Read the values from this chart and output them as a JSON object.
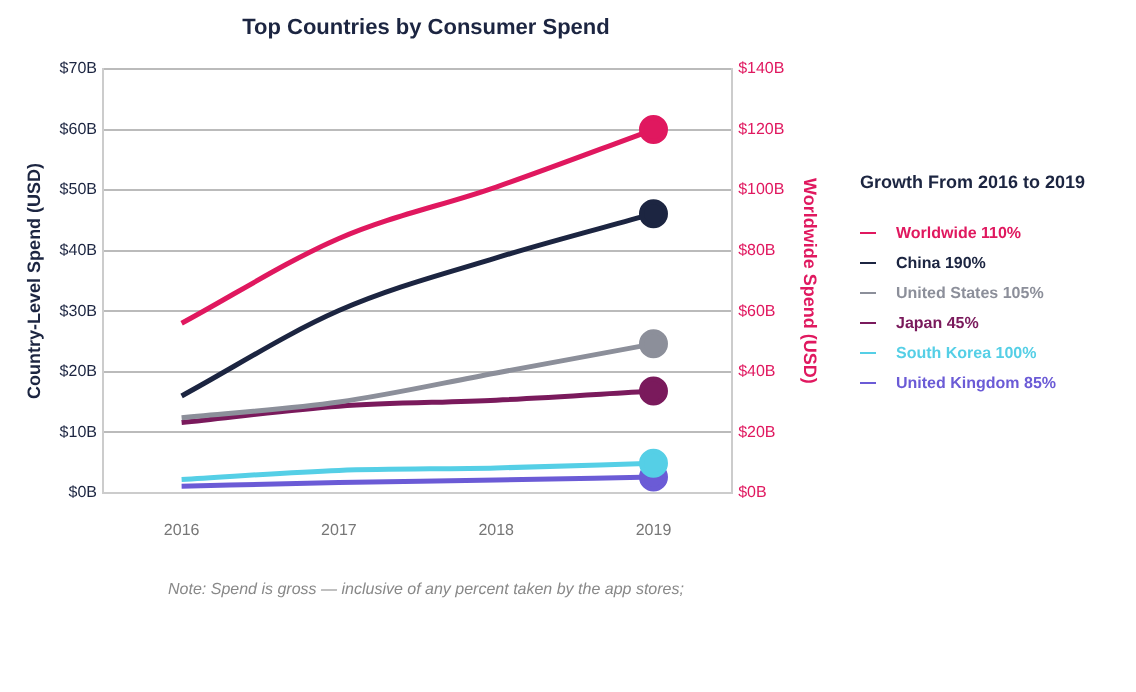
{
  "chart_data": {
    "type": "line",
    "title": "Top Countries by Consumer Spend",
    "ylabel": "Country-Level Spend (USD)",
    "y2label": "Worldwide Spend (USD)",
    "legend_title": "Growth From 2016 to 2019",
    "categories": [
      "2016",
      "2017",
      "2018",
      "2019"
    ],
    "series": [
      {
        "name": "Worldwide 110%",
        "color": "#e0185f",
        "axis": "y2",
        "values": [
          56,
          84,
          101,
          120
        ]
      },
      {
        "name": "China 190%",
        "color": "#1c2541",
        "values": [
          16.0,
          30.1,
          38.8,
          46.1
        ]
      },
      {
        "name": "United States 105%",
        "color": "#8c8f9a",
        "values": [
          12.4,
          15.0,
          19.8,
          24.6
        ]
      },
      {
        "name": "Japan 45%",
        "color": "#7a1a5c",
        "values": [
          11.6,
          14.3,
          15.3,
          16.8
        ]
      },
      {
        "name": "South Korea 100%",
        "color": "#55cfe6",
        "values": [
          2.2,
          3.7,
          4.1,
          4.9
        ]
      },
      {
        "name": "United Kingdom 85%",
        "color": "#6b5bd6",
        "values": [
          1.1,
          1.7,
          2.1,
          2.6
        ]
      }
    ],
    "ylim": [
      0,
      70
    ],
    "yticks": [
      {
        "value": 0,
        "label": "$0B"
      },
      {
        "value": 10,
        "label": "$10B"
      },
      {
        "value": 20,
        "label": "$20B"
      },
      {
        "value": 30,
        "label": "$30B"
      },
      {
        "value": 40,
        "label": "$40B"
      },
      {
        "value": 50,
        "label": "$50B"
      },
      {
        "value": 60,
        "label": "$60B"
      },
      {
        "value": 70,
        "label": "$70B"
      }
    ],
    "y2lim": [
      0,
      140
    ],
    "y2ticks": [
      {
        "value": 0,
        "label": "$0B"
      },
      {
        "value": 20,
        "label": "$20B"
      },
      {
        "value": 40,
        "label": "$40B"
      },
      {
        "value": 60,
        "label": "$60B"
      },
      {
        "value": 80,
        "label": "$80B"
      },
      {
        "value": 100,
        "label": "$100B"
      },
      {
        "value": 120,
        "label": "$120B"
      },
      {
        "value": 140,
        "label": "$140B"
      }
    ],
    "grid": "y",
    "legend": "right",
    "line_style": "solid",
    "annotations": [
      "Note: Spend is gross — inclusive of any percent taken by the app stores;"
    ]
  }
}
